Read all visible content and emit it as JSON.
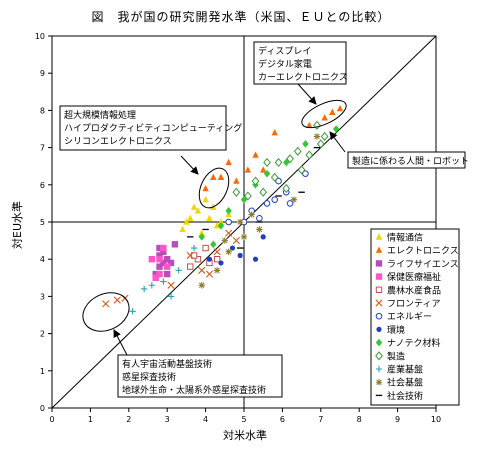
{
  "chart_data": {
    "type": "scatter",
    "title": "図　我が国の研究開発水準（米国、ＥＵとの比較）",
    "xlabel": "対米水準",
    "ylabel": "対EU水準",
    "xlim": [
      0,
      10
    ],
    "ylim": [
      0,
      10
    ],
    "xticks": [
      "0",
      "1",
      "2",
      "3",
      "4",
      "5",
      "6",
      "7",
      "8",
      "9",
      "10"
    ],
    "yticks": [
      "0",
      "1",
      "2",
      "3",
      "4",
      "5",
      "6",
      "7",
      "8",
      "9",
      "10"
    ],
    "grid": false,
    "reference_lines": {
      "diagonal": true,
      "x": 5,
      "y": 5
    },
    "legend_position": "right",
    "series": [
      {
        "name": "情報通信",
        "color": "#f2d600",
        "marker": "triangle",
        "points": [
          [
            3.4,
            4.8
          ],
          [
            3.6,
            5.1
          ],
          [
            3.8,
            5.3
          ],
          [
            4.0,
            5.6
          ],
          [
            4.2,
            5.4
          ],
          [
            4.4,
            5.0
          ],
          [
            3.9,
            4.7
          ],
          [
            4.6,
            5.2
          ],
          [
            4.1,
            5.1
          ],
          [
            3.7,
            5.4
          ],
          [
            4.3,
            4.9
          ],
          [
            3.5,
            5.0
          ]
        ]
      },
      {
        "name": "エレクトロニクス",
        "color": "#ff6a00",
        "marker": "triangle",
        "points": [
          [
            4.0,
            5.9
          ],
          [
            4.2,
            6.2
          ],
          [
            4.4,
            6.2
          ],
          [
            4.6,
            6.6
          ],
          [
            5.1,
            6.4
          ],
          [
            5.3,
            6.8
          ],
          [
            5.8,
            7.4
          ],
          [
            6.7,
            7.6
          ],
          [
            7.1,
            7.8
          ],
          [
            7.3,
            7.95
          ],
          [
            7.5,
            8.05
          ],
          [
            5.5,
            6.4
          ],
          [
            4.8,
            6.1
          ]
        ]
      },
      {
        "name": "ライフサイエンス",
        "color": "#b84cb8",
        "marker": "square",
        "points": [
          [
            2.7,
            3.6
          ],
          [
            2.8,
            3.8
          ],
          [
            2.9,
            3.9
          ],
          [
            2.8,
            4.1
          ],
          [
            2.8,
            4.3
          ],
          [
            3.0,
            3.6
          ],
          [
            3.0,
            4.0
          ],
          [
            3.2,
            4.4
          ],
          [
            2.9,
            4.2
          ],
          [
            3.1,
            3.9
          ]
        ]
      },
      {
        "name": "保健医療福祉",
        "color": "#ff55c8",
        "marker": "square",
        "points": [
          [
            2.6,
            4.0
          ],
          [
            2.7,
            3.5
          ],
          [
            2.8,
            4.0
          ],
          [
            2.9,
            4.3
          ],
          [
            3.0,
            3.8
          ],
          [
            2.8,
            3.6
          ]
        ]
      },
      {
        "name": "農林水産食品",
        "color": "#c0504d",
        "marker": "square-open",
        "points": [
          [
            3.6,
            3.8
          ],
          [
            3.8,
            4.0
          ],
          [
            4.1,
            3.9
          ],
          [
            4.3,
            4.0
          ],
          [
            4.0,
            4.3
          ],
          [
            3.7,
            4.1
          ]
        ]
      },
      {
        "name": "フロンティア",
        "color": "#d25a1e",
        "marker": "x",
        "points": [
          [
            1.4,
            2.8
          ],
          [
            1.7,
            2.9
          ],
          [
            1.9,
            2.95
          ],
          [
            3.1,
            3.3
          ],
          [
            3.6,
            4.1
          ],
          [
            4.1,
            3.6
          ],
          [
            4.6,
            4.7
          ],
          [
            4.8,
            4.5
          ],
          [
            4.3,
            4.2
          ],
          [
            3.9,
            3.7
          ]
        ]
      },
      {
        "name": "エネルギー",
        "color": "#1f3fbf",
        "marker": "circle-open",
        "points": [
          [
            4.6,
            5.0
          ],
          [
            5.0,
            5.0
          ],
          [
            5.2,
            5.3
          ],
          [
            5.6,
            5.5
          ],
          [
            5.8,
            5.6
          ],
          [
            6.1,
            5.8
          ],
          [
            6.6,
            6.3
          ],
          [
            5.9,
            6.1
          ],
          [
            6.2,
            5.5
          ],
          [
            5.4,
            5.1
          ]
        ]
      },
      {
        "name": "環境",
        "color": "#1f3fbf",
        "marker": "dot",
        "points": [
          [
            4.1,
            4.0
          ],
          [
            4.4,
            3.9
          ],
          [
            4.7,
            4.3
          ],
          [
            5.3,
            4.0
          ],
          [
            5.5,
            4.6
          ],
          [
            4.9,
            4.1
          ]
        ]
      },
      {
        "name": "ナノテク材料",
        "color": "#32c832",
        "marker": "diamond",
        "points": [
          [
            3.9,
            4.6
          ],
          [
            4.2,
            4.4
          ],
          [
            4.4,
            4.9
          ],
          [
            4.6,
            5.3
          ],
          [
            5.0,
            5.6
          ],
          [
            5.3,
            6.0
          ],
          [
            5.6,
            6.3
          ],
          [
            6.1,
            6.6
          ],
          [
            6.6,
            7.1
          ],
          [
            7.4,
            7.5
          ]
        ]
      },
      {
        "name": "製造",
        "color": "#3a9a3a",
        "marker": "diamond-open",
        "points": [
          [
            5.1,
            5.7
          ],
          [
            5.3,
            6.1
          ],
          [
            5.6,
            6.6
          ],
          [
            5.9,
            6.6
          ],
          [
            6.2,
            6.7
          ],
          [
            6.4,
            6.9
          ],
          [
            6.7,
            6.8
          ],
          [
            7.0,
            7.1
          ],
          [
            5.5,
            5.8
          ],
          [
            5.8,
            6.2
          ],
          [
            6.1,
            5.9
          ],
          [
            6.5,
            6.4
          ],
          [
            7.1,
            7.3
          ],
          [
            4.8,
            5.8
          ],
          [
            6.9,
            7.6
          ]
        ]
      },
      {
        "name": "産業基盤",
        "color": "#2aa0b0",
        "marker": "plus",
        "points": [
          [
            2.1,
            2.6
          ],
          [
            2.4,
            3.2
          ],
          [
            2.6,
            3.3
          ],
          [
            2.9,
            3.4
          ],
          [
            3.1,
            3.0
          ],
          [
            3.3,
            3.7
          ],
          [
            3.7,
            4.3
          ]
        ]
      },
      {
        "name": "社会基盤",
        "color": "#8a7a2a",
        "marker": "star",
        "points": [
          [
            3.9,
            3.3
          ],
          [
            4.3,
            3.7
          ],
          [
            4.5,
            4.5
          ],
          [
            4.9,
            5.0
          ],
          [
            5.0,
            4.6
          ],
          [
            5.4,
            4.8
          ],
          [
            6.3,
            5.6
          ],
          [
            6.9,
            7.3
          ],
          [
            5.2,
            5.2
          ],
          [
            4.6,
            4.2
          ]
        ]
      },
      {
        "name": "社会技術",
        "color": "#000000",
        "marker": "dash",
        "points": [
          [
            3.6,
            4.6
          ],
          [
            4.0,
            4.8
          ],
          [
            4.9,
            4.3
          ],
          [
            5.4,
            5.0
          ],
          [
            5.9,
            5.7
          ],
          [
            6.5,
            5.8
          ],
          [
            6.9,
            7.0
          ]
        ]
      }
    ],
    "annotations": [
      {
        "lines": [
          "ディスプレイ",
          "デジタル家電",
          "カーエレクトロニクス"
        ]
      },
      {
        "lines": [
          "超大規模情報処理",
          "ハイプロダクティビティコンピューティング",
          "シリコンエレクトロニクス"
        ]
      },
      {
        "lines": [
          "製造に係わる人間・ロボット"
        ]
      },
      {
        "lines": [
          "有人宇宙活動基盤技術",
          "惑星探査技術",
          "地球外生命・太陽系外惑星探査技術"
        ]
      }
    ]
  }
}
